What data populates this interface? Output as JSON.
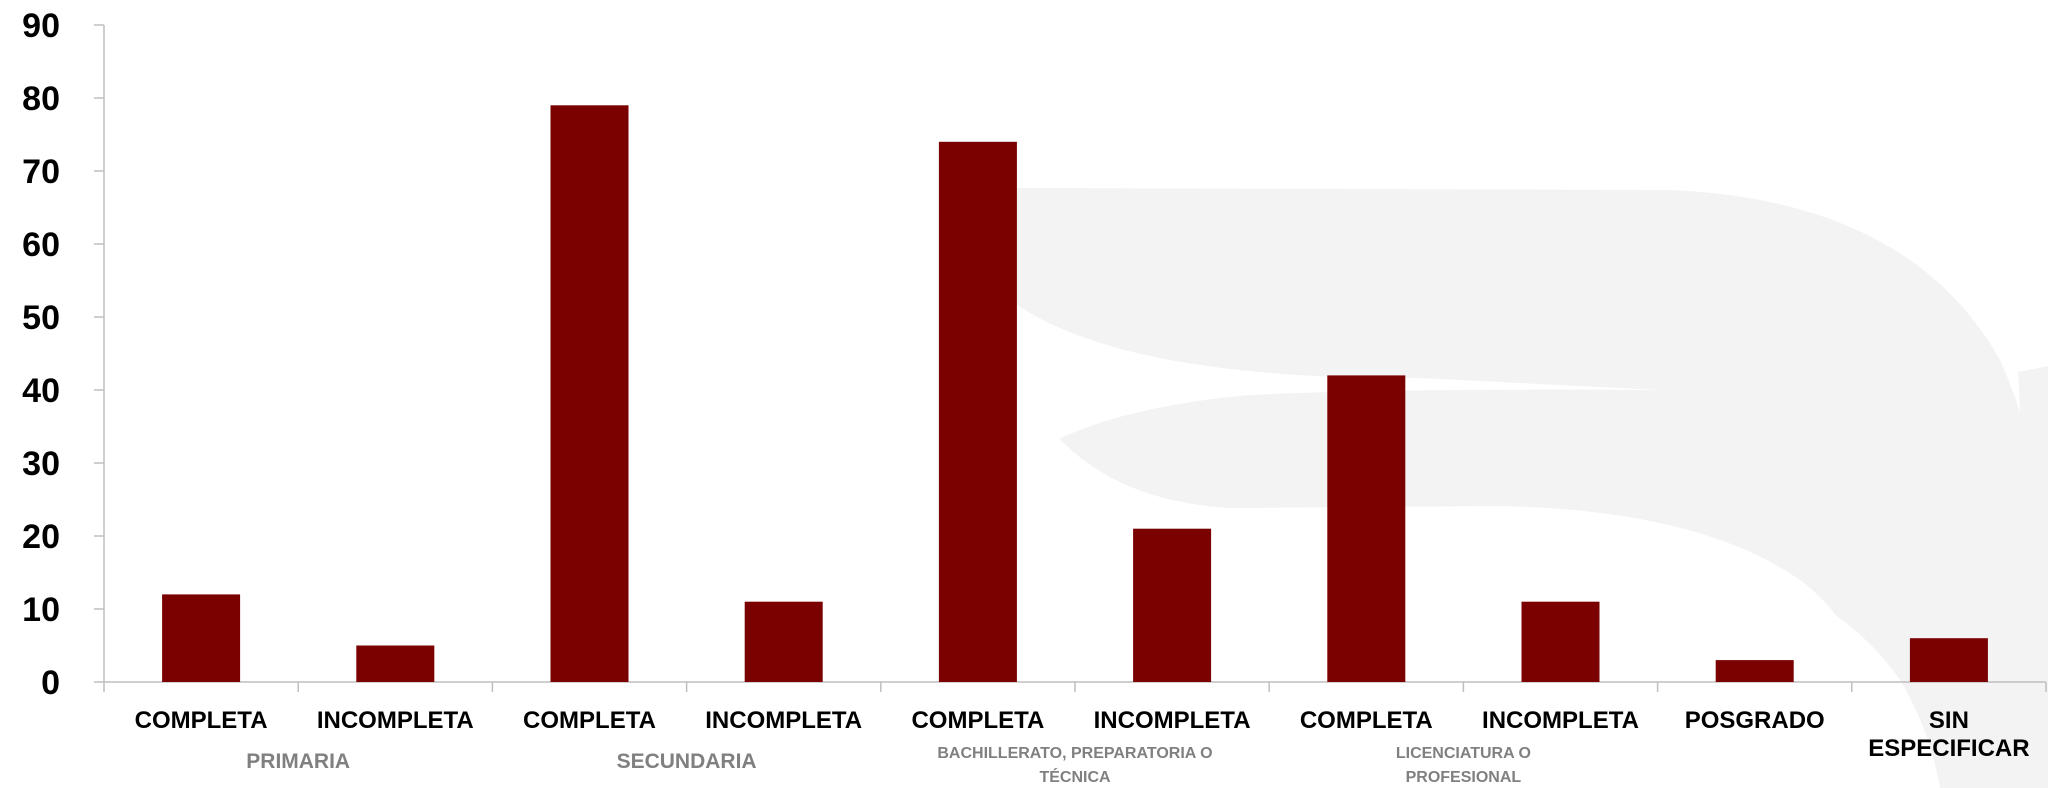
{
  "chart_data": {
    "type": "bar",
    "categories": [
      "COMPLETA",
      "INCOMPLETA",
      "COMPLETA",
      "INCOMPLETA",
      "COMPLETA",
      "INCOMPLETA",
      "COMPLETA",
      "INCOMPLETA",
      "POSGRADO",
      "SIN ESPECIFICAR"
    ],
    "category_lines": [
      [
        "COMPLETA"
      ],
      [
        "INCOMPLETA"
      ],
      [
        "COMPLETA"
      ],
      [
        "INCOMPLETA"
      ],
      [
        "COMPLETA"
      ],
      [
        "INCOMPLETA"
      ],
      [
        "COMPLETA"
      ],
      [
        "INCOMPLETA"
      ],
      [
        "POSGRADO"
      ],
      [
        "SIN",
        "ESPECIFICAR"
      ]
    ],
    "groups": [
      {
        "label_lines": [
          "PRIMARIA"
        ],
        "span": [
          0,
          1
        ]
      },
      {
        "label_lines": [
          "SECUNDARIA"
        ],
        "span": [
          2,
          3
        ]
      },
      {
        "label_lines": [
          "BACHILLERATO, PREPARATORIA O",
          "TÉCNICA"
        ],
        "span": [
          4,
          5
        ]
      },
      {
        "label_lines": [
          "LICENCIATURA O",
          "PROFESIONAL"
        ],
        "span": [
          6,
          7
        ]
      }
    ],
    "values": [
      12,
      5,
      79,
      11,
      74,
      21,
      42,
      11,
      3,
      6
    ],
    "ylim": [
      0,
      90
    ],
    "yticks": [
      0,
      10,
      20,
      30,
      40,
      50,
      60,
      70,
      80,
      90
    ],
    "grid": false,
    "legend": "none",
    "bar_color": "#7b0000",
    "axis_color": "#bfbfbf",
    "group_label_color": "#808080",
    "watermark_color": "#f3f3f3",
    "title": "",
    "xlabel": "",
    "ylabel": ""
  }
}
